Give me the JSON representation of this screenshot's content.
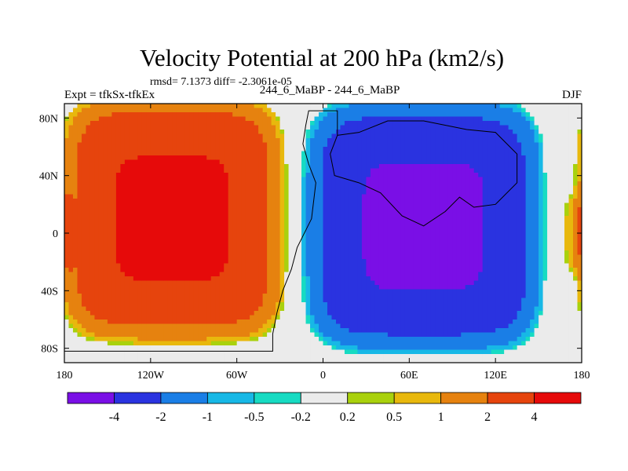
{
  "chart_data": {
    "type": "heatmap",
    "title": "Velocity Potential at 200 hPa (km2/s)",
    "stats_text": "rmsd= 7.1373 diff= -2.3061e-05",
    "left_label": "Expt = tfkSx-tfkEx",
    "center_label": "244_6_MaBP - 244_6_MaBP",
    "right_label": "DJF",
    "x_axis": {
      "range": [
        -180,
        180
      ],
      "ticks": [
        {
          "value": -180,
          "label": "180"
        },
        {
          "value": -120,
          "label": "120W"
        },
        {
          "value": -60,
          "label": "60W"
        },
        {
          "value": 0,
          "label": "0"
        },
        {
          "value": 60,
          "label": "60E"
        },
        {
          "value": 120,
          "label": "120E"
        },
        {
          "value": 180,
          "label": "180"
        }
      ]
    },
    "y_axis": {
      "range": [
        -90,
        90
      ],
      "ticks": [
        {
          "value": 80,
          "label": "80N"
        },
        {
          "value": 40,
          "label": "40N"
        },
        {
          "value": 0,
          "label": "0"
        },
        {
          "value": -40,
          "label": "40S"
        },
        {
          "value": -80,
          "label": "80S"
        }
      ]
    },
    "levels": [
      {
        "color": "#7a0fe6",
        "label": "-4"
      },
      {
        "color": "#2a33e0",
        "label": "-2"
      },
      {
        "color": "#1a7ee6",
        "label": "-1"
      },
      {
        "color": "#17b8e6",
        "label": "-0.5"
      },
      {
        "color": "#17dbc2",
        "label": "-0.2"
      },
      {
        "color": "#ebebeb",
        "label": "0.2"
      },
      {
        "color": "#a9d10d",
        "label": "0.5"
      },
      {
        "color": "#e8b80d",
        "label": "1"
      },
      {
        "color": "#e6820f",
        "label": "2"
      },
      {
        "color": "#e6440d",
        "label": "4"
      },
      {
        "color": "#e60a0a",
        "label": ""
      }
    ],
    "field_regions": [
      {
        "note": "strong positive anomaly over eastern Pacific / Americas",
        "shape": "ellipse",
        "center": [
          -105,
          10
        ],
        "half_width": [
          80,
          88
        ],
        "peak": 6,
        "power": 5
      },
      {
        "note": "strong negative anomaly over Africa / Asia / Indian Ocean",
        "shape": "ellipse",
        "center": [
          70,
          5
        ],
        "half_width": [
          85,
          90
        ],
        "peak": -6,
        "power": 5
      },
      {
        "note": "small positive lobe near dateline, tropics",
        "shape": "ellipse",
        "center": [
          179,
          0
        ],
        "half_width": [
          12,
          35
        ],
        "peak": 1.6,
        "power": 2
      }
    ],
    "continent_outline": [
      [
        -180,
        -82
      ],
      [
        -35,
        -82
      ],
      [
        -35,
        -70
      ],
      [
        -32,
        -55
      ],
      [
        -28,
        -40
      ],
      [
        -22,
        -25
      ],
      [
        -18,
        -10
      ],
      [
        -8,
        10
      ],
      [
        -5,
        35
      ],
      [
        -10,
        48
      ],
      [
        -14,
        62
      ],
      [
        -12,
        75
      ],
      [
        -10,
        85
      ],
      [
        10,
        85
      ],
      [
        10,
        68
      ],
      [
        5,
        55
      ],
      [
        8,
        40
      ],
      [
        25,
        35
      ],
      [
        40,
        28
      ],
      [
        55,
        12
      ],
      [
        70,
        5
      ],
      [
        85,
        15
      ],
      [
        95,
        25
      ],
      [
        105,
        18
      ],
      [
        120,
        20
      ],
      [
        135,
        35
      ],
      [
        135,
        55
      ],
      [
        120,
        70
      ],
      [
        100,
        72
      ],
      [
        70,
        78
      ],
      [
        45,
        78
      ],
      [
        25,
        70
      ],
      [
        10,
        68
      ]
    ]
  }
}
